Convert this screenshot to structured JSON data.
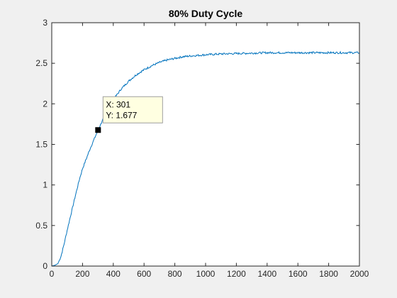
{
  "chart_data": {
    "type": "line",
    "title": "80% Duty Cycle",
    "xlabel": "",
    "ylabel": "",
    "xlim": [
      0,
      2000
    ],
    "ylim": [
      0,
      3
    ],
    "xticks": [
      0,
      200,
      400,
      600,
      800,
      1000,
      1200,
      1400,
      1600,
      1800,
      2000
    ],
    "xtick_labels": [
      "0",
      "200",
      "400",
      "600",
      "800",
      "1000",
      "1200",
      "1400",
      "1600",
      "1800",
      "2000"
    ],
    "yticks": [
      0,
      0.5,
      1,
      1.5,
      2,
      2.5,
      3
    ],
    "ytick_labels": [
      "0",
      "0.5",
      "1",
      "1.5",
      "2",
      "2.5",
      "3"
    ],
    "grid": false,
    "legend": "none",
    "series": [
      {
        "color": "#0072bd",
        "x": [
          0,
          20,
          40,
          60,
          80,
          100,
          120,
          150,
          180,
          200,
          250,
          301,
          350,
          400,
          450,
          500,
          550,
          600,
          650,
          700,
          750,
          800,
          850,
          900,
          1000,
          1100,
          1200,
          1300,
          1400,
          1500,
          1600,
          1700,
          1800,
          1900,
          2000
        ],
        "y": [
          0,
          0.01,
          0.03,
          0.12,
          0.27,
          0.44,
          0.6,
          0.84,
          1.07,
          1.2,
          1.45,
          1.677,
          1.88,
          2.05,
          2.18,
          2.28,
          2.36,
          2.42,
          2.47,
          2.51,
          2.54,
          2.56,
          2.58,
          2.59,
          2.605,
          2.615,
          2.62,
          2.625,
          2.63,
          2.63,
          2.63,
          2.63,
          2.63,
          2.63,
          2.63
        ]
      }
    ],
    "datatip": {
      "x": 301,
      "y": 1.677,
      "x_text": "X: 301",
      "y_text": "Y: 1.677",
      "background": "#ffffe1"
    }
  }
}
